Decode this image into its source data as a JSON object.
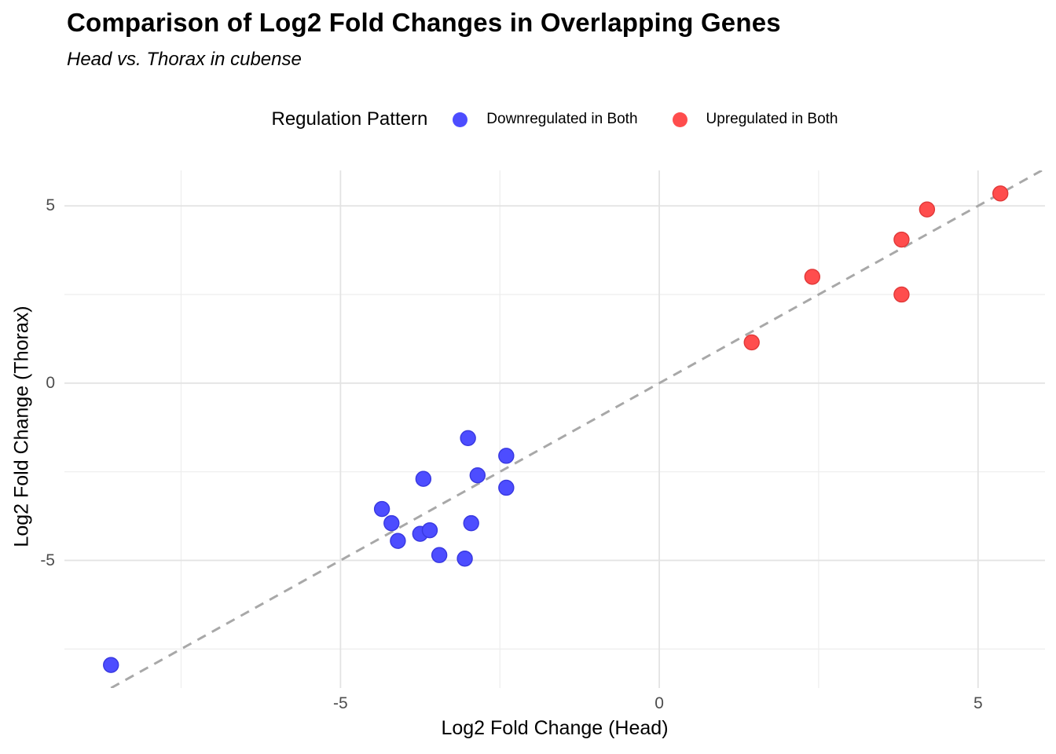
{
  "header": {
    "title": "Comparison of Log2 Fold Changes in Overlapping Genes",
    "subtitle": "Head vs. Thorax in cubense"
  },
  "legend": {
    "title": "Regulation Pattern",
    "position": "top",
    "entries": [
      {
        "label": "Downregulated in Both",
        "color": "#4D4DFF"
      },
      {
        "label": "Upregulated in Both",
        "color": "#FF4D4D"
      }
    ]
  },
  "chart_data": {
    "type": "scatter",
    "title": "Comparison of Log2 Fold Changes in Overlapping Genes",
    "subtitle": "Head vs. Thorax in cubense",
    "xlabel": "Log2 Fold Change (Head)",
    "ylabel": "Log2 Fold Change (Thorax)",
    "xlim": [
      -9.33,
      6.05
    ],
    "ylim": [
      -8.6,
      6.0
    ],
    "x_ticks": {
      "major": [
        -5,
        0,
        5
      ],
      "minor": [
        -7.5,
        -2.5,
        2.5
      ]
    },
    "y_ticks": {
      "major": [
        -5,
        0,
        5
      ],
      "minor": [
        -7.5,
        -2.5,
        2.5
      ]
    },
    "grid": true,
    "legend_position": "top",
    "background": "#FFFFFF",
    "grid_major_color": "#E3E3E3",
    "grid_minor_color": "#EDEDED",
    "reference_line": {
      "kind": "identity",
      "dashed": true,
      "color": "#A8A8A8"
    },
    "series": [
      {
        "name": "Downregulated in Both",
        "color": "#4D4DFF",
        "edge": "#3838E0",
        "points": [
          [
            -8.6,
            -7.95
          ],
          [
            -4.35,
            -3.55
          ],
          [
            -4.2,
            -3.95
          ],
          [
            -4.1,
            -4.45
          ],
          [
            -3.75,
            -4.25
          ],
          [
            -3.7,
            -2.7
          ],
          [
            -3.6,
            -4.15
          ],
          [
            -3.45,
            -4.85
          ],
          [
            -3.05,
            -4.95
          ],
          [
            -3.0,
            -1.55
          ],
          [
            -2.95,
            -3.95
          ],
          [
            -2.85,
            -2.6
          ],
          [
            -2.4,
            -2.05
          ],
          [
            -2.4,
            -2.95
          ]
        ]
      },
      {
        "name": "Upregulated in Both",
        "color": "#FF4D4D",
        "edge": "#E03838",
        "points": [
          [
            1.45,
            1.15
          ],
          [
            2.4,
            3.0
          ],
          [
            3.8,
            2.5
          ],
          [
            3.8,
            4.05
          ],
          [
            4.2,
            4.9
          ],
          [
            5.35,
            5.35
          ]
        ]
      }
    ]
  }
}
